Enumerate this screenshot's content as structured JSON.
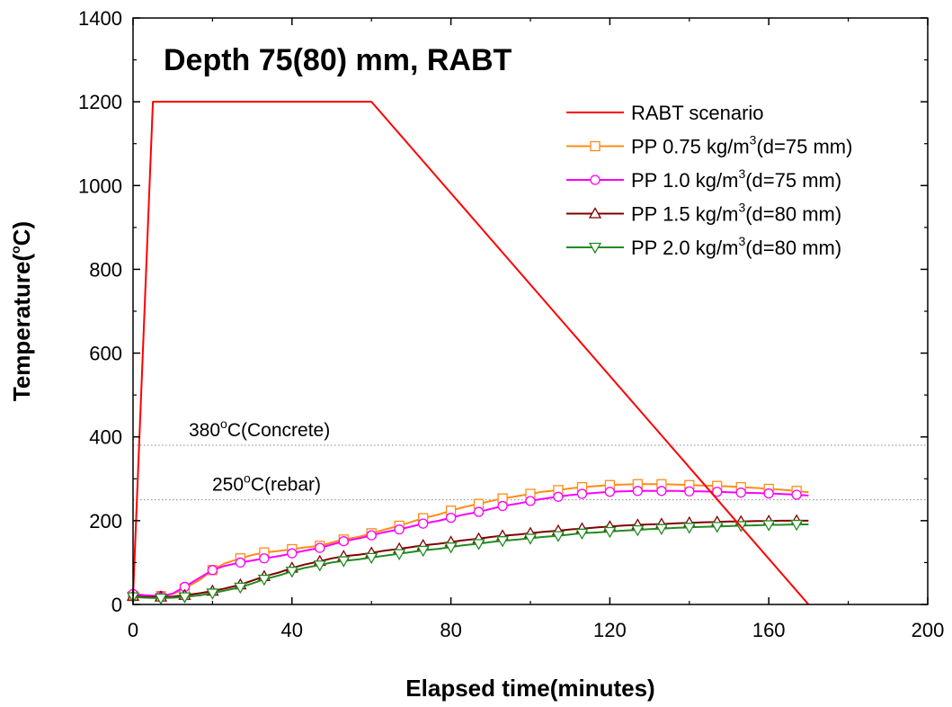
{
  "chart_data": {
    "type": "line",
    "title": "Depth 75(80) mm, RABT",
    "xlabel": "Elapsed time(minutes)",
    "ylabel": {
      "base": "Temperature(",
      "sup": "o",
      "tail": "C)"
    },
    "xlim": [
      0,
      200
    ],
    "ylim": [
      0,
      1400
    ],
    "xticks": [
      0,
      40,
      80,
      120,
      160,
      200
    ],
    "yticks": [
      0,
      200,
      400,
      600,
      800,
      1000,
      1200,
      1400
    ],
    "legend_position": "top-right",
    "reference_lines": [
      {
        "y": 380,
        "label_base": "380",
        "label_sup": "o",
        "label_tail": "C(Concrete)"
      },
      {
        "y": 250,
        "label_base": "250",
        "label_sup": "o",
        "label_tail": "C(rebar)"
      }
    ],
    "series": [
      {
        "name": "RABT scenario",
        "legend": {
          "base": "RABT scenario",
          "sup": "",
          "tail": ""
        },
        "color": "#ff0000",
        "marker": "none",
        "x": [
          0,
          5,
          60,
          170
        ],
        "y": [
          20,
          1200,
          1200,
          0
        ]
      },
      {
        "name": "PP 0.75 kg/m3(d=75 mm)",
        "legend": {
          "base": "PP 0.75 kg/m",
          "sup": "3",
          "tail": "(d=75 mm)"
        },
        "color": "#ff8c1a",
        "marker": "square",
        "x": [
          0,
          3,
          7,
          10,
          13,
          17,
          20,
          23,
          27,
          30,
          33,
          37,
          40,
          43,
          47,
          50,
          53,
          57,
          60,
          63,
          67,
          70,
          73,
          77,
          80,
          83,
          87,
          90,
          93,
          97,
          100,
          103,
          107,
          110,
          113,
          117,
          120,
          123,
          127,
          130,
          133,
          137,
          140,
          143,
          147,
          150,
          153,
          157,
          160,
          163,
          167,
          170
        ],
        "y": [
          20,
          18,
          20,
          25,
          38,
          60,
          82,
          98,
          110,
          118,
          124,
          128,
          132,
          136,
          140,
          148,
          155,
          162,
          170,
          178,
          188,
          197,
          206,
          215,
          224,
          232,
          240,
          247,
          253,
          259,
          264,
          269,
          273,
          277,
          280,
          283,
          285,
          286,
          287,
          287,
          287,
          286,
          285,
          284,
          283,
          282,
          280,
          278,
          276,
          274,
          271,
          268
        ]
      },
      {
        "name": "PP 1.0 kg/m3(d=75 mm)",
        "legend": {
          "base": "PP 1.0 kg/m",
          "sup": "3",
          "tail": "(d=75 mm)"
        },
        "color": "#ff00ff",
        "marker": "circle",
        "x": [
          0,
          3,
          7,
          10,
          13,
          17,
          20,
          23,
          27,
          30,
          33,
          37,
          40,
          43,
          47,
          50,
          53,
          57,
          60,
          63,
          67,
          70,
          73,
          77,
          80,
          83,
          87,
          90,
          93,
          97,
          100,
          103,
          107,
          110,
          113,
          117,
          120,
          123,
          127,
          130,
          133,
          137,
          140,
          143,
          147,
          150,
          153,
          157,
          160,
          163,
          167,
          170
        ],
        "y": [
          25,
          22,
          20,
          26,
          42,
          65,
          82,
          92,
          100,
          105,
          110,
          116,
          122,
          128,
          135,
          143,
          151,
          158,
          165,
          172,
          179,
          186,
          193,
          200,
          207,
          214,
          221,
          228,
          235,
          241,
          247,
          252,
          257,
          261,
          264,
          267,
          269,
          270,
          271,
          271,
          271,
          271,
          270,
          270,
          269,
          268,
          267,
          266,
          265,
          264,
          262,
          260
        ]
      },
      {
        "name": "PP 1.5 kg/m3(d=80 mm)",
        "legend": {
          "base": "PP 1.5 kg/m",
          "sup": "3",
          "tail": "(d=80 mm)"
        },
        "color": "#800000",
        "marker": "triangle-up",
        "x": [
          0,
          3,
          7,
          10,
          13,
          17,
          20,
          23,
          27,
          30,
          33,
          37,
          40,
          43,
          47,
          50,
          53,
          57,
          60,
          63,
          67,
          70,
          73,
          77,
          80,
          83,
          87,
          90,
          93,
          97,
          100,
          103,
          107,
          110,
          113,
          117,
          120,
          123,
          127,
          130,
          133,
          137,
          140,
          143,
          147,
          150,
          153,
          157,
          160,
          163,
          167,
          170
        ],
        "y": [
          20,
          18,
          18,
          19,
          22,
          27,
          32,
          38,
          47,
          57,
          67,
          77,
          87,
          95,
          103,
          110,
          115,
          119,
          123,
          128,
          133,
          137,
          141,
          145,
          149,
          153,
          157,
          161,
          164,
          167,
          170,
          173,
          176,
          179,
          181,
          184,
          186,
          188,
          190,
          191,
          192,
          194,
          195,
          196,
          197,
          198,
          198,
          199,
          199,
          200,
          200,
          200
        ]
      },
      {
        "name": "PP 2.0 kg/m3(d=80 mm)",
        "legend": {
          "base": "PP 2.0 kg/m",
          "sup": "3",
          "tail": "(d=80 mm)"
        },
        "color": "#228b22",
        "marker": "triangle-down",
        "x": [
          0,
          3,
          7,
          10,
          13,
          17,
          20,
          23,
          27,
          30,
          33,
          37,
          40,
          43,
          47,
          50,
          53,
          57,
          60,
          63,
          67,
          70,
          73,
          77,
          80,
          83,
          87,
          90,
          93,
          97,
          100,
          103,
          107,
          110,
          113,
          117,
          120,
          123,
          127,
          130,
          133,
          137,
          140,
          143,
          147,
          150,
          153,
          157,
          160,
          163,
          167,
          170
        ],
        "y": [
          18,
          16,
          15,
          16,
          18,
          22,
          27,
          33,
          41,
          50,
          60,
          70,
          79,
          87,
          94,
          100,
          104,
          108,
          112,
          116,
          121,
          125,
          129,
          133,
          137,
          141,
          145,
          149,
          152,
          155,
          158,
          161,
          164,
          167,
          170,
          172,
          174,
          176,
          178,
          180,
          181,
          183,
          184,
          185,
          186,
          187,
          188,
          189,
          190,
          190,
          191,
          191
        ]
      }
    ]
  }
}
